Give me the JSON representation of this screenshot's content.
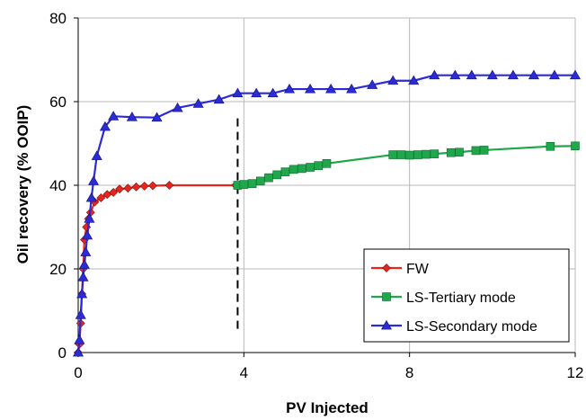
{
  "chart_data": {
    "type": "line",
    "title": "",
    "xlabel": "PV Injected",
    "ylabel": "Oil recovery  (% OOIP)",
    "xlim": [
      0,
      12
    ],
    "ylim": [
      0,
      80
    ],
    "xticks": [
      0,
      4,
      8,
      12
    ],
    "yticks": [
      0,
      20,
      40,
      60,
      80
    ],
    "grid": {
      "vertical": true,
      "horizontal": true
    },
    "legend_position": "bottom-right",
    "annotations": [
      {
        "type": "dashed-vertical-line",
        "x": 3.85,
        "y_from": 5,
        "y_to": 56,
        "color": "#000000"
      }
    ],
    "series": [
      {
        "name": "FW",
        "marker": "diamond",
        "color": "#e8251b",
        "line_color": "#e8251b",
        "x": [
          0.0,
          0.03,
          0.06,
          0.09,
          0.12,
          0.15,
          0.2,
          0.25,
          0.3,
          0.4,
          0.55,
          0.7,
          0.85,
          1.0,
          1.2,
          1.4,
          1.6,
          1.8,
          2.2,
          3.8
        ],
        "y": [
          0,
          2,
          7,
          14,
          20,
          27,
          30,
          32,
          33.5,
          36,
          37,
          37.8,
          38.3,
          39.1,
          39.3,
          39.6,
          39.8,
          39.9,
          40.0,
          40.0
        ]
      },
      {
        "name": "LS-Tertiary mode",
        "marker": "square",
        "color": "#1fa84b",
        "line_color": "#1fa84b",
        "x": [
          3.85,
          4.0,
          4.2,
          4.4,
          4.6,
          4.8,
          5.0,
          5.2,
          5.4,
          5.6,
          5.8,
          6.0,
          7.6,
          7.8,
          8.0,
          8.2,
          8.4,
          8.6,
          9.0,
          9.2,
          9.6,
          9.8,
          11.4,
          12.0
        ],
        "y": [
          40,
          40.2,
          40.4,
          41,
          41.8,
          42.5,
          43.2,
          43.8,
          44.0,
          44.3,
          44.7,
          45.2,
          47.3,
          47.3,
          47.2,
          47.3,
          47.4,
          47.5,
          47.8,
          47.9,
          48.3,
          48.4,
          49.3,
          49.4
        ]
      },
      {
        "name": "LS-Secondary mode",
        "marker": "triangle",
        "color": "#2b2bd8",
        "line_color": "#2b2bd8",
        "x": [
          0.0,
          0.03,
          0.06,
          0.09,
          0.12,
          0.15,
          0.18,
          0.22,
          0.27,
          0.32,
          0.37,
          0.45,
          0.65,
          0.85,
          1.3,
          1.9,
          2.4,
          2.9,
          3.4,
          3.85,
          4.3,
          4.7,
          5.1,
          5.6,
          6.1,
          6.6,
          7.1,
          7.6,
          8.1,
          8.6,
          9.1,
          9.5,
          10.0,
          10.5,
          11.0,
          11.5,
          12.0
        ],
        "y": [
          0,
          3,
          9,
          14,
          18,
          21,
          24,
          28,
          32,
          37,
          41,
          47,
          54,
          56.5,
          56.3,
          56.2,
          58.5,
          59.5,
          60.5,
          62,
          62,
          62,
          63,
          63,
          63,
          63,
          64,
          65,
          65,
          66.3,
          66.3,
          66.3,
          66.3,
          66.3,
          66.3,
          66.3,
          66.3
        ]
      }
    ]
  }
}
